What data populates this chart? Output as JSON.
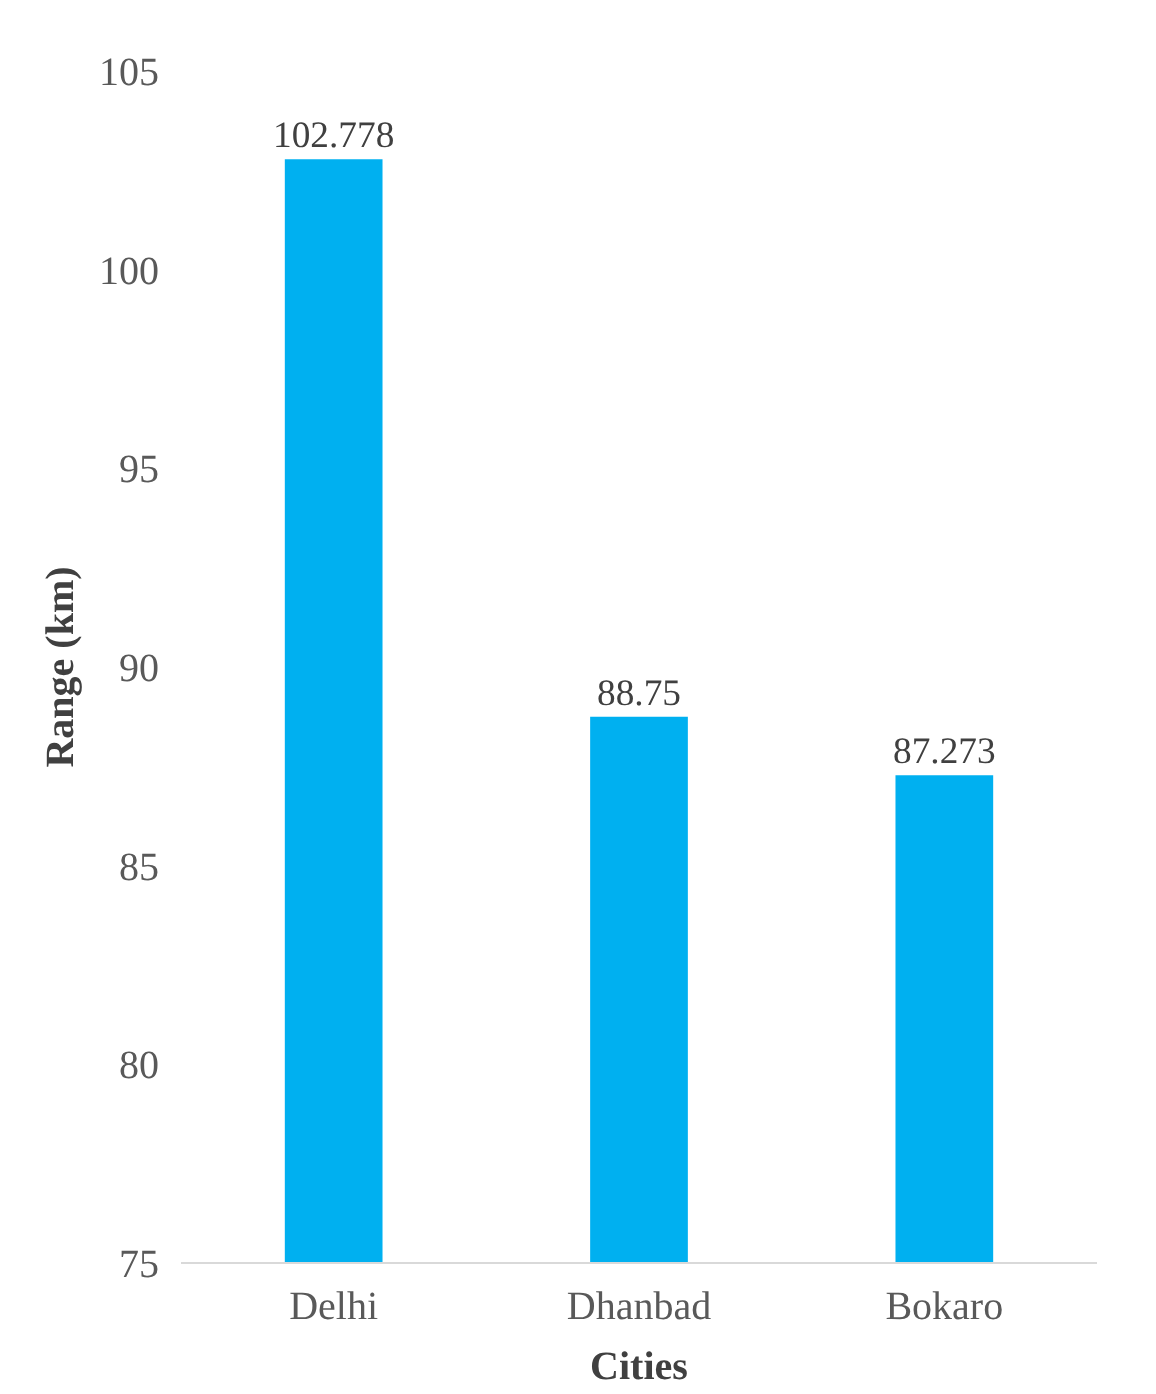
{
  "chart_data": {
    "type": "bar",
    "xlabel": "Cities",
    "ylabel": "Range (km)",
    "categories": [
      "Delhi",
      "Dhanbad",
      "Bokaro"
    ],
    "values": [
      102.778,
      88.75,
      87.273
    ],
    "color": "#00b0f0",
    "ylim": [
      75,
      105
    ],
    "yticks": [
      75,
      80,
      85,
      90,
      95,
      100,
      105
    ],
    "data_labels": true,
    "grid": false
  }
}
